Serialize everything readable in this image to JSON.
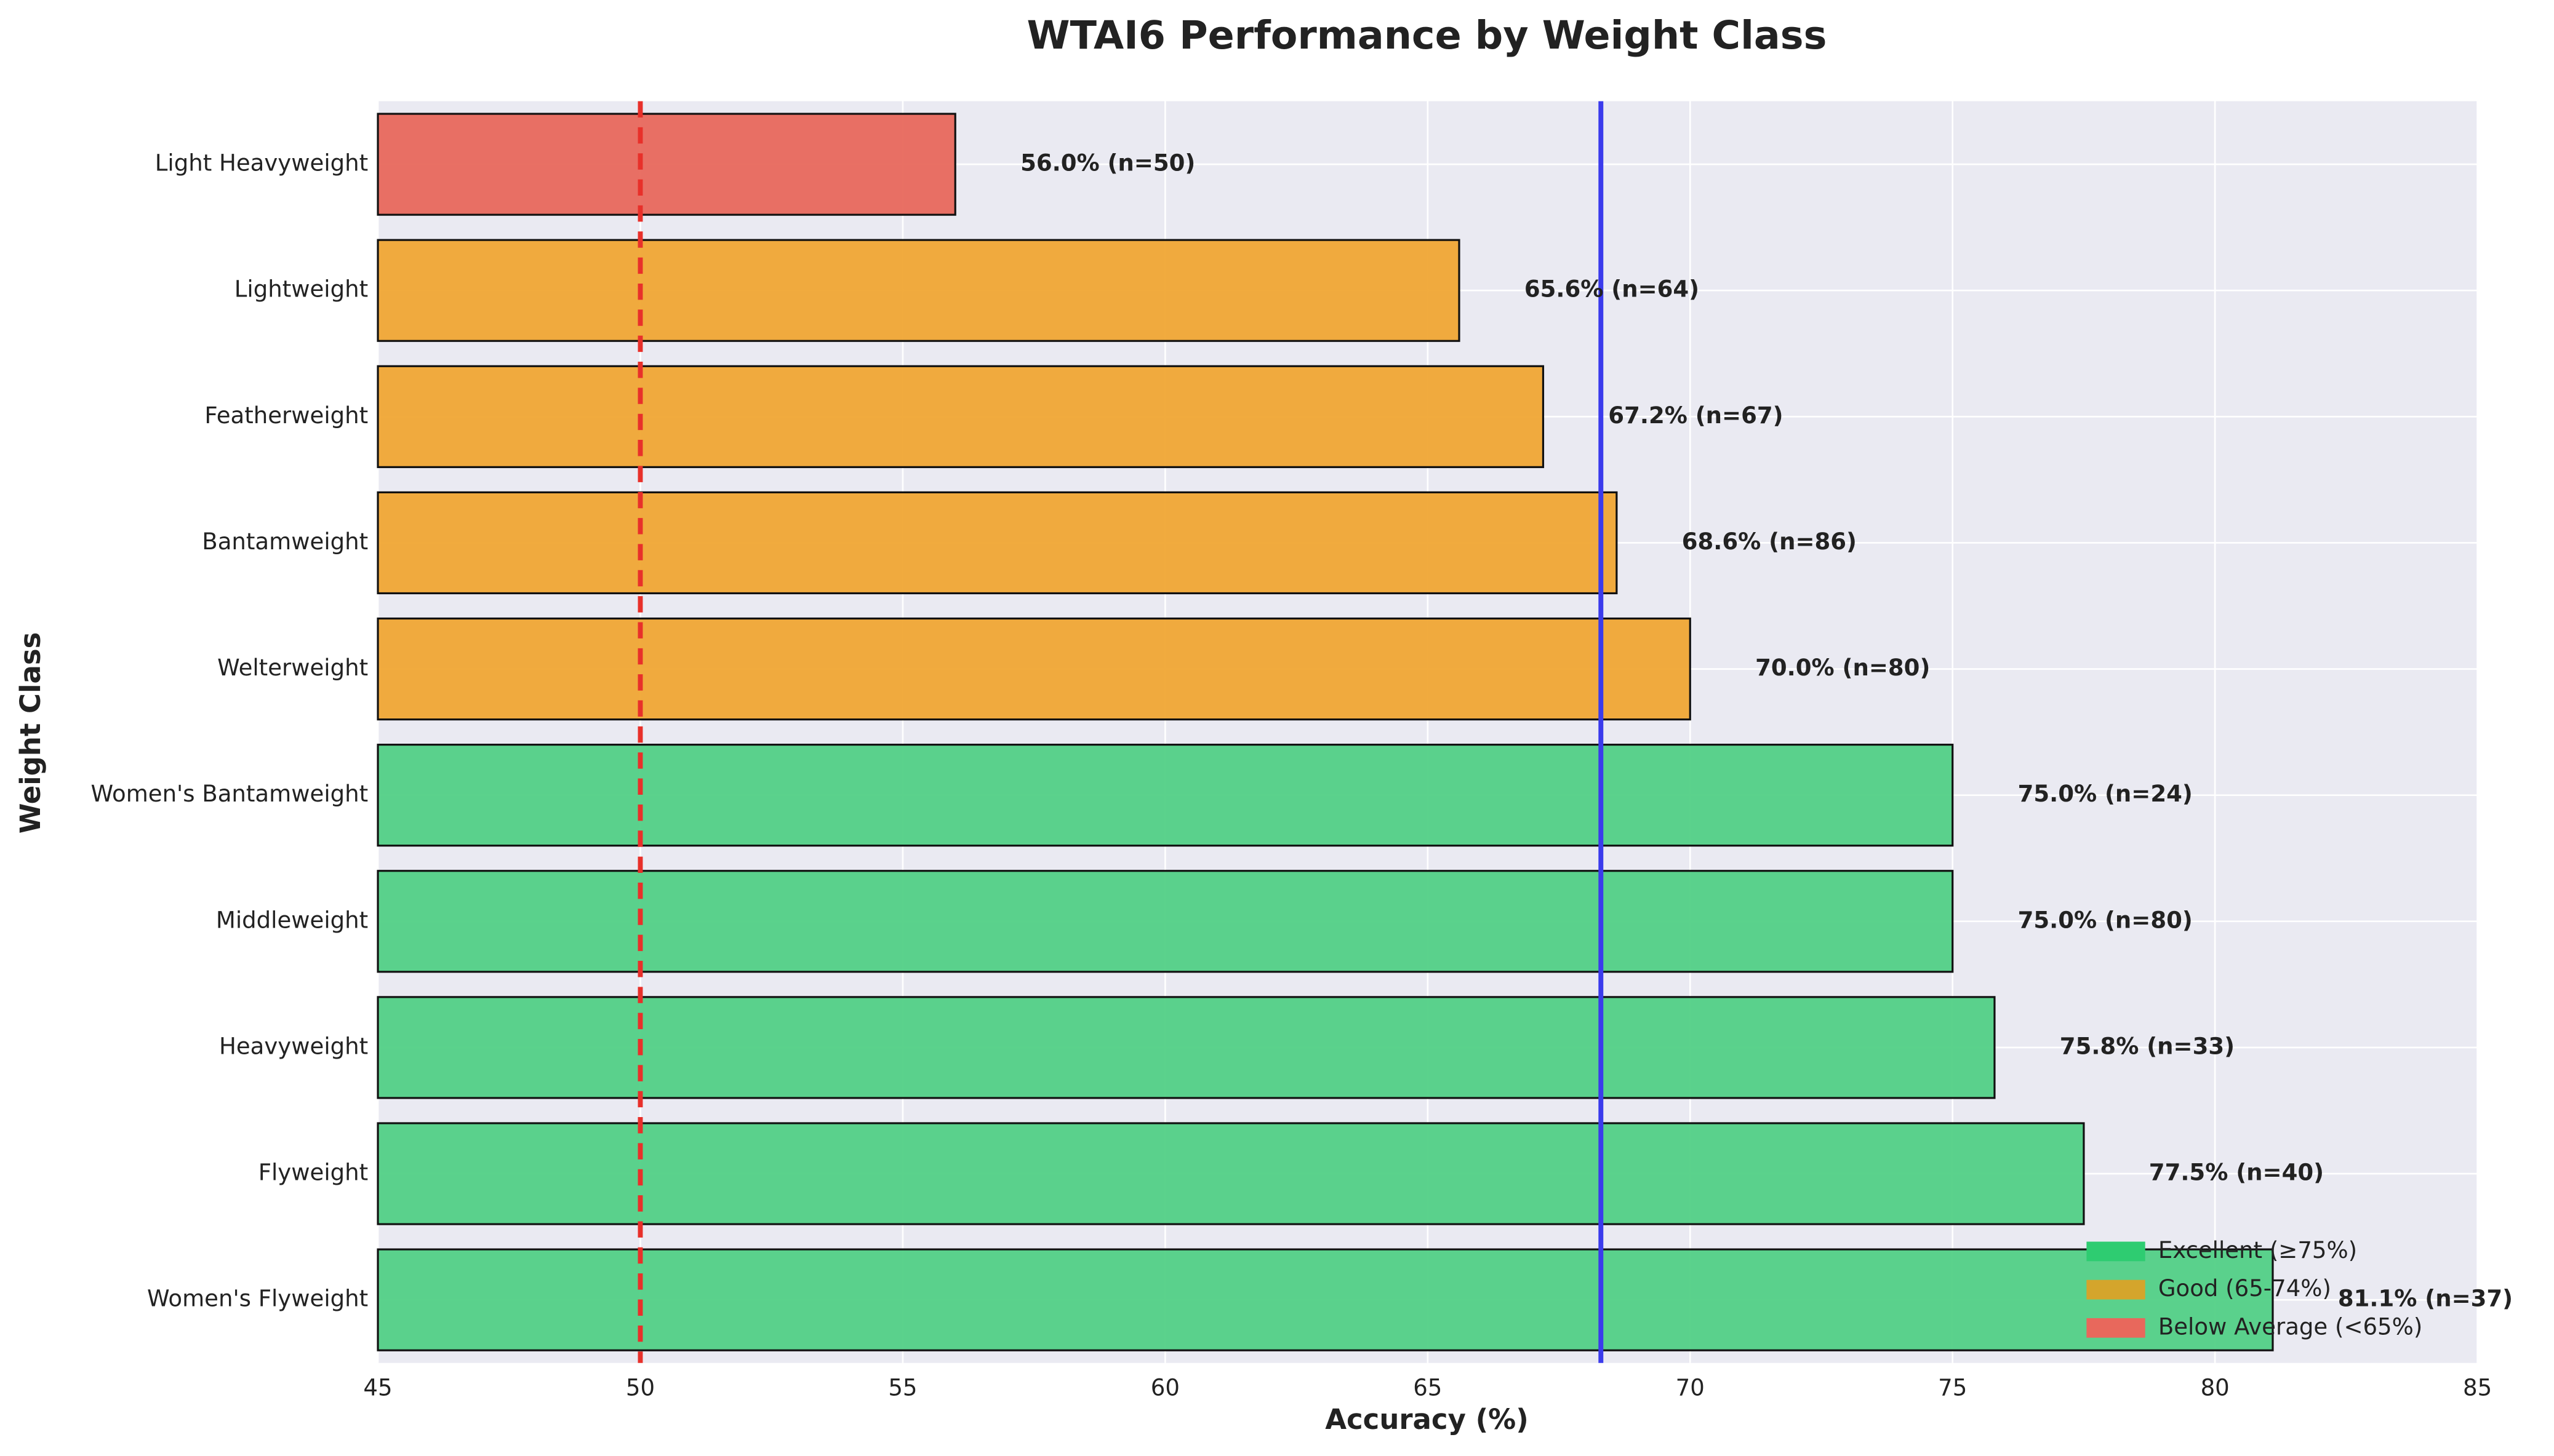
{
  "chart_data": {
    "type": "barh",
    "title": "WTAI6 Performance by Weight Class",
    "xlabel": "Accuracy (%)",
    "ylabel": "Weight Class",
    "categories": [
      "Light Heavyweight",
      "Lightweight",
      "Featherweight",
      "Bantamweight",
      "Welterweight",
      "Women's Bantamweight",
      "Middleweight",
      "Heavyweight",
      "Flyweight",
      "Women's Flyweight"
    ],
    "values": [
      56.0,
      65.6,
      67.2,
      68.6,
      70.0,
      75.0,
      75.0,
      75.8,
      77.5,
      81.1
    ],
    "value_labels": [
      "56.0% (n=50)",
      "65.6% (n=64)",
      "67.2% (n=67)",
      "68.6% (n=86)",
      "70.0% (n=80)",
      "75.0% (n=24)",
      "75.0% (n=80)",
      "75.8% (n=33)",
      "77.5% (n=40)",
      "81.1% (n=37)"
    ],
    "colors": [
      "#e8685c",
      "#f0a634",
      "#f0a634",
      "#f0a634",
      "#f0a634",
      "#52d086",
      "#52d086",
      "#52d086",
      "#52d086",
      "#52d086"
    ],
    "xlim": [
      45,
      85
    ],
    "xticks": [
      45,
      50,
      55,
      60,
      65,
      70,
      75,
      80,
      85
    ],
    "grid": true,
    "reference_lines": [
      {
        "value": 50,
        "color": "#e8302a",
        "style": "dashed"
      },
      {
        "value": 68.3,
        "color": "#3b3bec",
        "style": "solid"
      }
    ],
    "legend": {
      "position": "lower right",
      "entries": [
        {
          "label": "Excellent (≥75%)",
          "color": "#2ecc71"
        },
        {
          "label": "Good (65-74%)",
          "color": "#d4a52c"
        },
        {
          "label": "Below Average (<65%)",
          "color": "#e8685c"
        }
      ]
    }
  }
}
